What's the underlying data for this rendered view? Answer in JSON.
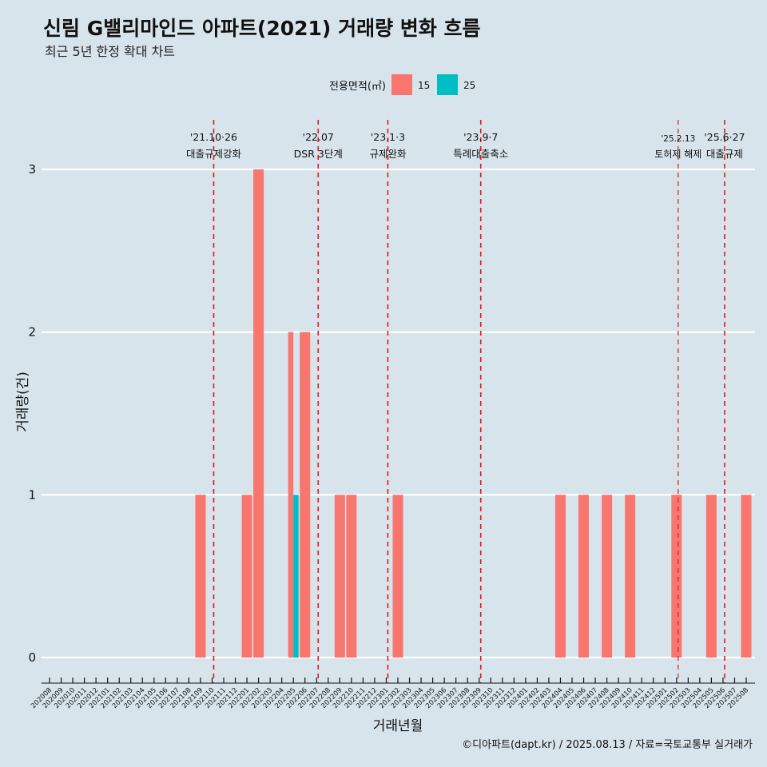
{
  "chart_data": {
    "type": "bar",
    "title": "신림 G밸리마인드 아파트(2021) 거래량 변화 흐름",
    "subtitle": "최근 5년 한정 확대 차트",
    "xlabel": "거래년월",
    "ylabel": "거래량(건)",
    "ylim": [
      0,
      3
    ],
    "y_ticks": [
      "0",
      "1",
      "2",
      "3"
    ],
    "grid": true,
    "legend": {
      "title": "전용면적(㎡)",
      "position": "top",
      "colors": [
        "#F8766D",
        "#00BFC4"
      ]
    },
    "categories": [
      "202008",
      "202009",
      "202010",
      "202011",
      "202012",
      "202101",
      "202102",
      "202103",
      "202104",
      "202105",
      "202106",
      "202107",
      "202108",
      "202109",
      "202110",
      "202111",
      "202112",
      "202201",
      "202202",
      "202203",
      "202204",
      "202205",
      "202206",
      "202207",
      "202208",
      "202209",
      "202210",
      "202211",
      "202212",
      "202301",
      "202302",
      "202303",
      "202304",
      "202305",
      "202306",
      "202307",
      "202308",
      "202309",
      "202310",
      "202311",
      "202312",
      "202401",
      "202402",
      "202403",
      "202404",
      "202405",
      "202406",
      "202407",
      "202408",
      "202409",
      "202410",
      "202411",
      "202412",
      "202501",
      "202502",
      "202503",
      "202504",
      "202505",
      "202506",
      "202507",
      "202508"
    ],
    "series": [
      {
        "name": "15",
        "values": [
          0,
          0,
          0,
          0,
          0,
          0,
          0,
          0,
          0,
          0,
          0,
          0,
          0,
          1,
          0,
          0,
          0,
          1,
          3,
          0,
          0,
          2,
          2,
          0,
          0,
          1,
          1,
          0,
          0,
          0,
          1,
          0,
          0,
          0,
          0,
          0,
          0,
          0,
          0,
          0,
          0,
          0,
          0,
          0,
          1,
          0,
          1,
          0,
          1,
          0,
          1,
          0,
          0,
          0,
          1,
          0,
          0,
          1,
          0,
          0,
          1
        ]
      },
      {
        "name": "25",
        "values": [
          0,
          0,
          0,
          0,
          0,
          0,
          0,
          0,
          0,
          0,
          0,
          0,
          0,
          0,
          0,
          0,
          0,
          0,
          0,
          0,
          0,
          1,
          0,
          0,
          0,
          0,
          0,
          0,
          0,
          0,
          0,
          0,
          0,
          0,
          0,
          0,
          0,
          0,
          0,
          0,
          0,
          0,
          0,
          0,
          0,
          0,
          0,
          0,
          0,
          0,
          0,
          0,
          0,
          0,
          0,
          0,
          0,
          0,
          0,
          0,
          0
        ]
      }
    ],
    "events": [
      {
        "date": "'21.10·26",
        "label": "대출규제강화",
        "month": "202110",
        "size": "normal"
      },
      {
        "date": "'22.07",
        "label": "DSR 3단계",
        "month": "202207",
        "size": "normal"
      },
      {
        "date": "'23.1·3",
        "label": "규제완화",
        "month": "202301",
        "size": "normal"
      },
      {
        "date": "'23.9·7",
        "label": "특례대출축소",
        "month": "202309",
        "size": "normal"
      },
      {
        "date": "'25.2.13",
        "label": "토허제 해제",
        "month": "202502",
        "size": "small"
      },
      {
        "date": "'25.6·27",
        "label": "대출규제",
        "month": "202506",
        "size": "normal"
      }
    ],
    "caption": "©디아파트(dapt.kr) / 2025.08.13 / 자료=국토교통부 실거래가"
  }
}
